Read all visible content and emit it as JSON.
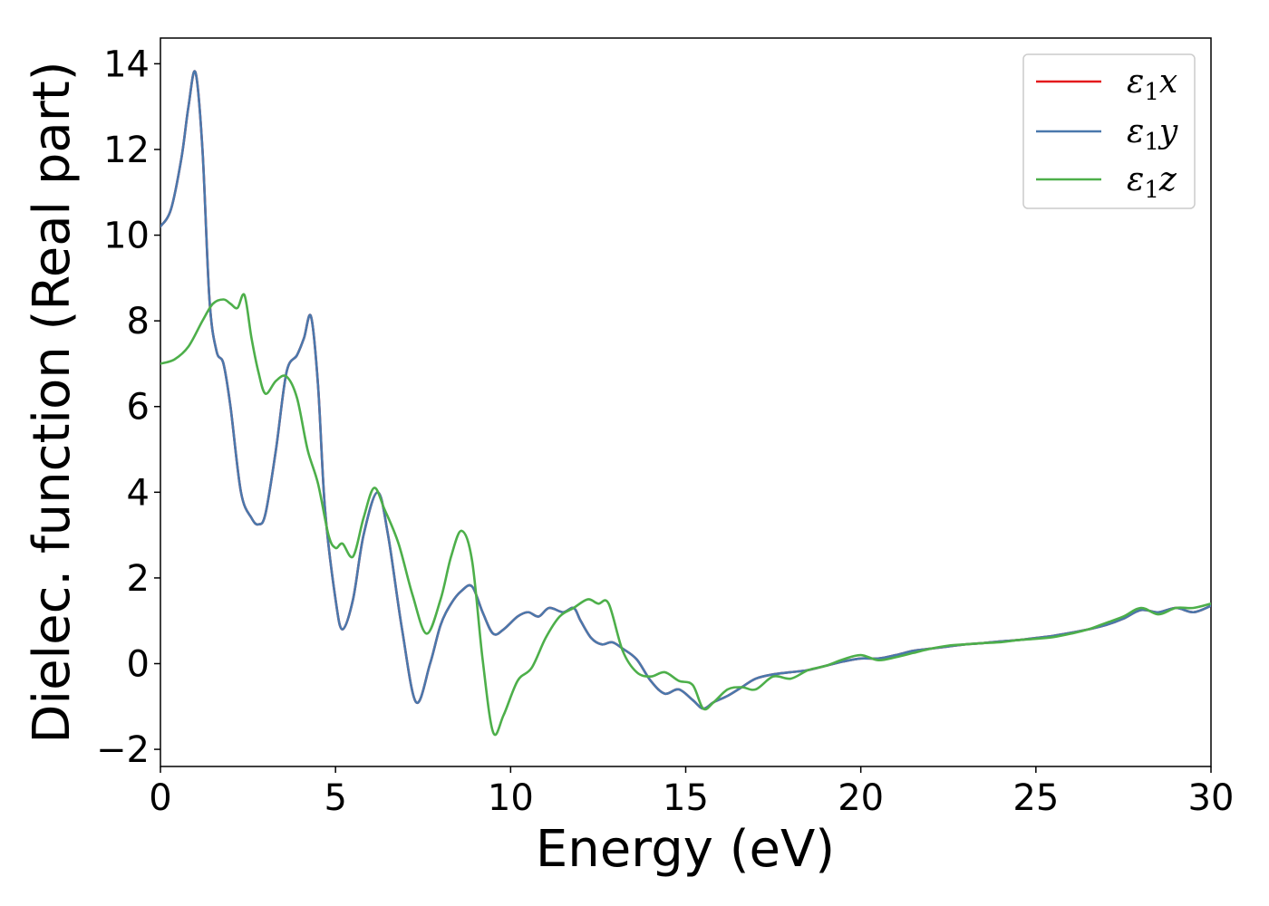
{
  "chart_data": {
    "type": "line",
    "title": "",
    "xlabel": "Energy (eV)",
    "ylabel": "Dielec. function (Real part)",
    "xlim": [
      0,
      30
    ],
    "ylim": [
      -2.4,
      14.6
    ],
    "xticks": [
      0,
      5,
      10,
      15,
      20,
      25,
      30
    ],
    "xtick_labels": [
      "0",
      "5",
      "10",
      "15",
      "20",
      "25",
      "30"
    ],
    "yticks": [
      -2,
      0,
      2,
      4,
      6,
      8,
      10,
      12,
      14
    ],
    "ytick_labels": [
      "−2",
      "0",
      "2",
      "4",
      "6",
      "8",
      "10",
      "12",
      "14"
    ],
    "grid": false,
    "legend_position": "top-right",
    "series": [
      {
        "name": "ε1x",
        "legend_main": "ε",
        "legend_sub": "1",
        "legend_tail": "x",
        "color": "#e41a1c",
        "x": [
          0,
          0.3,
          0.6,
          0.8,
          1.0,
          1.2,
          1.4,
          1.6,
          1.8,
          2.0,
          2.3,
          2.6,
          2.8,
          3.0,
          3.3,
          3.6,
          3.9,
          4.1,
          4.3,
          4.5,
          4.7,
          5.0,
          5.2,
          5.5,
          5.8,
          6.2,
          6.5,
          6.9,
          7.3,
          7.7,
          8.0,
          8.3,
          8.6,
          8.9,
          9.2,
          9.5,
          9.8,
          10.2,
          10.5,
          10.8,
          11.1,
          11.5,
          11.8,
          12.0,
          12.3,
          12.6,
          12.9,
          13.2,
          13.6,
          14.0,
          14.4,
          14.8,
          15.2,
          15.5,
          15.8,
          16.2,
          16.6,
          17.0,
          17.5,
          18.0,
          18.5,
          19.0,
          19.5,
          20.0,
          20.5,
          21.0,
          21.5,
          22.0,
          22.5,
          23.0,
          23.5,
          24.0,
          24.5,
          25.0,
          25.5,
          26.0,
          26.5,
          27.0,
          27.5,
          28.0,
          28.5,
          29.0,
          29.5,
          30.0
        ],
        "y": [
          10.2,
          10.6,
          11.8,
          13.0,
          13.8,
          12.0,
          8.5,
          7.3,
          7.0,
          6.0,
          4.0,
          3.4,
          3.25,
          3.5,
          5.0,
          6.8,
          7.2,
          7.6,
          8.1,
          6.5,
          3.6,
          1.5,
          0.8,
          1.5,
          3.0,
          4.0,
          3.0,
          0.8,
          -0.9,
          0.0,
          0.9,
          1.4,
          1.7,
          1.8,
          1.2,
          0.7,
          0.8,
          1.1,
          1.2,
          1.1,
          1.3,
          1.2,
          1.3,
          1.0,
          0.6,
          0.45,
          0.5,
          0.35,
          0.1,
          -0.4,
          -0.7,
          -0.6,
          -0.85,
          -1.05,
          -0.9,
          -0.75,
          -0.55,
          -0.35,
          -0.25,
          -0.2,
          -0.15,
          -0.05,
          0.05,
          0.12,
          0.12,
          0.2,
          0.3,
          0.35,
          0.4,
          0.45,
          0.48,
          0.52,
          0.55,
          0.6,
          0.65,
          0.72,
          0.8,
          0.9,
          1.05,
          1.25,
          1.2,
          1.3,
          1.2,
          1.35
        ]
      },
      {
        "name": "ε1y",
        "legend_main": "ε",
        "legend_sub": "1",
        "legend_tail": "y",
        "color": "#4a78ac",
        "x": [
          0,
          0.3,
          0.6,
          0.8,
          1.0,
          1.2,
          1.4,
          1.6,
          1.8,
          2.0,
          2.3,
          2.6,
          2.8,
          3.0,
          3.3,
          3.6,
          3.9,
          4.1,
          4.3,
          4.5,
          4.7,
          5.0,
          5.2,
          5.5,
          5.8,
          6.2,
          6.5,
          6.9,
          7.3,
          7.7,
          8.0,
          8.3,
          8.6,
          8.9,
          9.2,
          9.5,
          9.8,
          10.2,
          10.5,
          10.8,
          11.1,
          11.5,
          11.8,
          12.0,
          12.3,
          12.6,
          12.9,
          13.2,
          13.6,
          14.0,
          14.4,
          14.8,
          15.2,
          15.5,
          15.8,
          16.2,
          16.6,
          17.0,
          17.5,
          18.0,
          18.5,
          19.0,
          19.5,
          20.0,
          20.5,
          21.0,
          21.5,
          22.0,
          22.5,
          23.0,
          23.5,
          24.0,
          24.5,
          25.0,
          25.5,
          26.0,
          26.5,
          27.0,
          27.5,
          28.0,
          28.5,
          29.0,
          29.5,
          30.0
        ],
        "y": [
          10.2,
          10.6,
          11.8,
          13.0,
          13.8,
          12.0,
          8.5,
          7.3,
          7.0,
          6.0,
          4.0,
          3.4,
          3.25,
          3.5,
          5.0,
          6.8,
          7.2,
          7.6,
          8.1,
          6.5,
          3.6,
          1.5,
          0.8,
          1.5,
          3.0,
          4.0,
          3.0,
          0.8,
          -0.9,
          0.0,
          0.9,
          1.4,
          1.7,
          1.8,
          1.2,
          0.7,
          0.8,
          1.1,
          1.2,
          1.1,
          1.3,
          1.2,
          1.3,
          1.0,
          0.6,
          0.45,
          0.5,
          0.35,
          0.1,
          -0.4,
          -0.7,
          -0.6,
          -0.85,
          -1.05,
          -0.9,
          -0.75,
          -0.55,
          -0.35,
          -0.25,
          -0.2,
          -0.15,
          -0.05,
          0.05,
          0.12,
          0.12,
          0.2,
          0.3,
          0.35,
          0.4,
          0.45,
          0.48,
          0.52,
          0.55,
          0.6,
          0.65,
          0.72,
          0.8,
          0.9,
          1.05,
          1.25,
          1.2,
          1.3,
          1.2,
          1.35
        ]
      },
      {
        "name": "ε1z",
        "legend_main": "ε",
        "legend_sub": "1",
        "legend_tail": "z",
        "color": "#4daf4a",
        "x": [
          0,
          0.4,
          0.8,
          1.2,
          1.5,
          1.8,
          2.0,
          2.2,
          2.4,
          2.6,
          2.8,
          3.0,
          3.3,
          3.6,
          3.9,
          4.2,
          4.5,
          4.8,
          5.0,
          5.2,
          5.5,
          5.8,
          6.1,
          6.4,
          6.8,
          7.2,
          7.6,
          8.0,
          8.3,
          8.6,
          8.9,
          9.2,
          9.5,
          9.8,
          10.2,
          10.6,
          11.0,
          11.4,
          11.8,
          12.2,
          12.5,
          12.8,
          13.2,
          13.6,
          14.0,
          14.4,
          14.8,
          15.2,
          15.5,
          15.8,
          16.2,
          16.6,
          17.0,
          17.5,
          18.0,
          18.5,
          19.0,
          19.5,
          20.0,
          20.5,
          21.0,
          21.5,
          22.0,
          22.5,
          23.0,
          23.5,
          24.0,
          24.5,
          25.0,
          25.5,
          26.0,
          26.5,
          27.0,
          27.5,
          28.0,
          28.5,
          29.0,
          29.5,
          30.0
        ],
        "y": [
          7.0,
          7.1,
          7.4,
          8.0,
          8.4,
          8.5,
          8.4,
          8.3,
          8.6,
          7.6,
          6.8,
          6.3,
          6.6,
          6.7,
          6.2,
          5.0,
          4.2,
          3.0,
          2.7,
          2.8,
          2.5,
          3.4,
          4.1,
          3.6,
          2.8,
          1.6,
          0.7,
          1.5,
          2.5,
          3.1,
          2.4,
          0.1,
          -1.6,
          -1.2,
          -0.4,
          -0.1,
          0.6,
          1.1,
          1.3,
          1.5,
          1.4,
          1.4,
          0.3,
          -0.2,
          -0.3,
          -0.2,
          -0.4,
          -0.5,
          -1.05,
          -0.9,
          -0.6,
          -0.55,
          -0.6,
          -0.3,
          -0.35,
          -0.15,
          -0.05,
          0.1,
          0.2,
          0.08,
          0.15,
          0.25,
          0.35,
          0.42,
          0.45,
          0.48,
          0.5,
          0.55,
          0.58,
          0.62,
          0.7,
          0.8,
          0.95,
          1.1,
          1.3,
          1.15,
          1.3,
          1.3,
          1.4
        ]
      }
    ]
  }
}
